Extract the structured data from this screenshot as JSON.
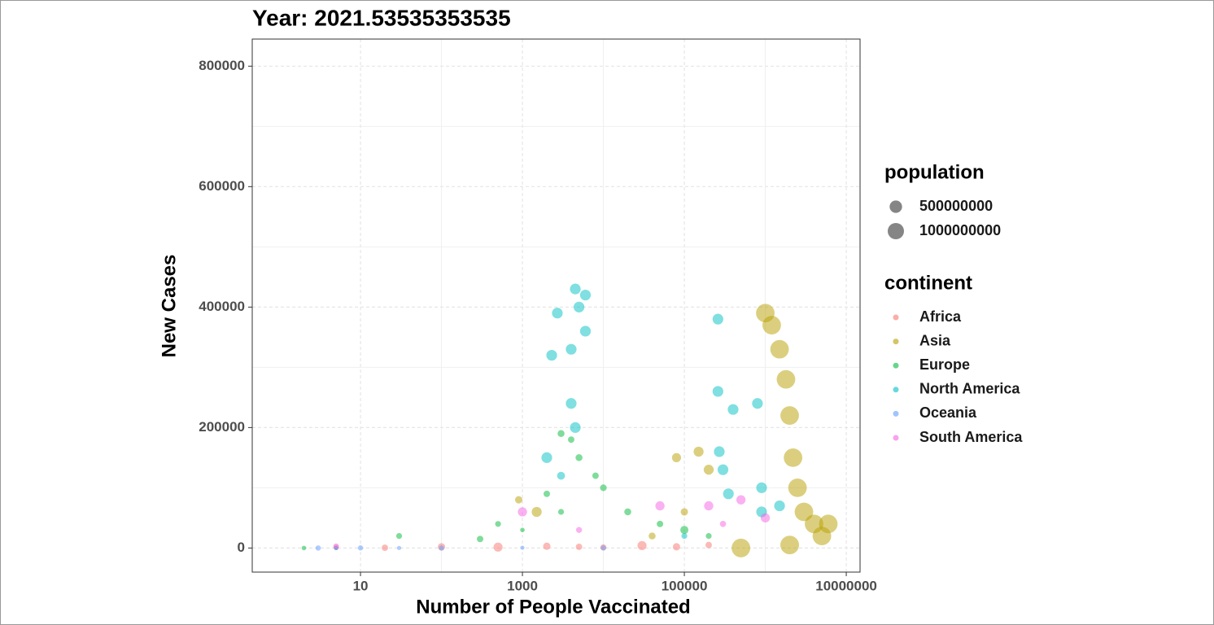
{
  "chart_data": {
    "type": "scatter",
    "title": "Year: 2021.53535353535",
    "x_label": "Number of People Vaccinated",
    "y_label": "New Cases",
    "log_x": true,
    "grid": true,
    "xlim": [
      0.46,
      14800000
    ],
    "ylim": [
      -40000,
      845000
    ],
    "xticks": [
      10,
      1000,
      100000,
      10000000
    ],
    "xminor": [
      100,
      10000,
      1000000
    ],
    "yticks": [
      0,
      200000,
      400000,
      600000,
      800000
    ],
    "yminor": [
      100000,
      300000,
      500000,
      700000
    ],
    "legend_position": "right",
    "size_legend": {
      "title": "population",
      "values": [
        500000000,
        1000000000
      ]
    },
    "color_legend_title": "continent",
    "series": [
      {
        "name": "Africa",
        "color": "#F8766D",
        "x": [
          5,
          20,
          100,
          500,
          2000,
          5000,
          10000,
          30000,
          80000,
          200000
        ],
        "values": [
          1000,
          500,
          2000,
          1500,
          3000,
          2000,
          1000,
          4000,
          2000,
          5000
        ],
        "sizes": [
          30000000,
          60000000,
          100000000,
          200000000,
          100000000,
          60000000,
          50000000,
          200000000,
          100000000,
          60000000
        ]
      },
      {
        "name": "Asia",
        "color": "#B79F00",
        "x": [
          1000000,
          1200000,
          1500000,
          1800000,
          2000000,
          2200000,
          2500000,
          3000000,
          4000000,
          5000000,
          6000000,
          500000,
          2000000,
          900,
          1500,
          80000,
          150000,
          200000,
          100000,
          40000
        ],
        "values": [
          390000,
          370000,
          330000,
          280000,
          220000,
          150000,
          100000,
          60000,
          40000,
          20000,
          40000,
          0,
          5000,
          80000,
          60000,
          150000,
          160000,
          130000,
          60000,
          20000
        ],
        "sizes": [
          1380000000,
          1380000000,
          1380000000,
          1380000000,
          1380000000,
          1380000000,
          1380000000,
          1380000000,
          1380000000,
          1380000000,
          1380000000,
          1400000000,
          1400000000,
          100000000,
          270000000,
          200000000,
          270000000,
          270000000,
          100000000,
          80000000
        ]
      },
      {
        "name": "Europe",
        "color": "#00BA38",
        "x": [
          2,
          30,
          300,
          2000,
          3000,
          4000,
          5000,
          8000,
          10000,
          20000,
          50000,
          100000,
          200000,
          3000,
          1000,
          500
        ],
        "values": [
          0,
          20000,
          15000,
          90000,
          190000,
          180000,
          150000,
          120000,
          100000,
          60000,
          40000,
          30000,
          20000,
          60000,
          30000,
          40000
        ],
        "sizes": [
          10000000,
          40000000,
          60000000,
          60000000,
          80000000,
          60000000,
          80000000,
          60000000,
          70000000,
          80000000,
          60000000,
          140000000,
          40000000,
          40000000,
          10000000,
          40000000
        ]
      },
      {
        "name": "North America",
        "color": "#00BFC4",
        "x": [
          2000,
          2300,
          2700,
          4000,
          4500,
          5000,
          6000,
          6000,
          4000,
          4500,
          260000,
          260000,
          270000,
          300000,
          350000,
          400000,
          800000,
          900000,
          900000,
          1500000,
          3000,
          5,
          100000
        ],
        "values": [
          150000,
          320000,
          390000,
          330000,
          430000,
          400000,
          420000,
          360000,
          240000,
          200000,
          380000,
          260000,
          160000,
          130000,
          90000,
          230000,
          240000,
          100000,
          60000,
          70000,
          120000,
          0,
          20000
        ],
        "sizes": [
          330000000,
          330000000,
          330000000,
          330000000,
          330000000,
          330000000,
          330000000,
          330000000,
          330000000,
          330000000,
          330000000,
          330000000,
          330000000,
          330000000,
          330000000,
          330000000,
          330000000,
          330000000,
          330000000,
          330000000,
          130000000,
          5000000,
          40000000
        ]
      },
      {
        "name": "Oceania",
        "color": "#619CFF",
        "x": [
          3,
          5,
          10,
          30,
          100,
          1000,
          10000
        ],
        "values": [
          0,
          0,
          200,
          100,
          0,
          500,
          200
        ],
        "sizes": [
          25000000,
          5000000,
          25000000,
          5000000,
          25000000,
          5000000,
          25000000
        ]
      },
      {
        "name": "South America",
        "color": "#F564E3",
        "x": [
          5,
          1000,
          5000,
          50000,
          200000,
          500000,
          1000000,
          300000
        ],
        "values": [
          3000,
          60000,
          30000,
          70000,
          70000,
          80000,
          50000,
          40000
        ],
        "sizes": [
          30000000,
          210000000,
          45000000,
          210000000,
          210000000,
          210000000,
          210000000,
          50000000
        ]
      }
    ]
  }
}
